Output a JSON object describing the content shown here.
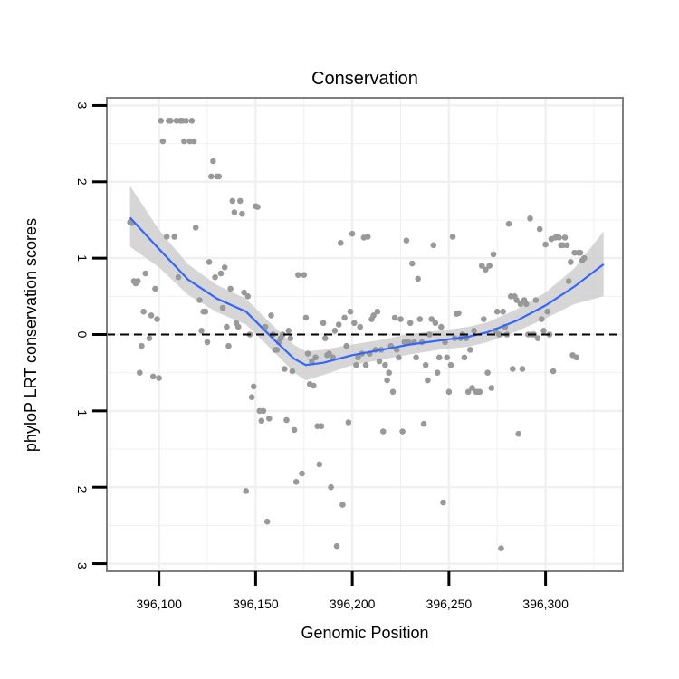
{
  "chart_data": {
    "type": "scatter",
    "title": "Conservation",
    "xlabel": "Genomic Position",
    "ylabel": "phyloP LRT conservation scores",
    "xlim": [
      396073,
      396340
    ],
    "ylim": [
      -3.1,
      3.1
    ],
    "x_ticks": [
      396100,
      396150,
      396200,
      396250,
      396300
    ],
    "x_tick_labels": [
      "396,100",
      "396,150",
      "396,200",
      "396,250",
      "396,300"
    ],
    "y_ticks": [
      -3,
      -2,
      -1,
      0,
      1,
      2,
      3
    ],
    "y_tick_labels": [
      "-3",
      "-2",
      "-1",
      "0",
      "1",
      "2",
      "3"
    ],
    "grid": true,
    "reference_line": {
      "y": 0,
      "style": "dashed"
    },
    "colors": {
      "points": "#999999",
      "smooth_line": "#3366ff",
      "confidence_band": "#cccccc",
      "reference_line": "#000000",
      "panel_border": "#7f7f7f",
      "grid": "#f0f0f0"
    },
    "points": [
      [
        396085,
        1.47
      ],
      [
        396086,
        1.46
      ],
      [
        396087,
        0.7
      ],
      [
        396088,
        0.67
      ],
      [
        396089,
        0.7
      ],
      [
        396090,
        -0.5
      ],
      [
        396091,
        -0.15
      ],
      [
        396092,
        0.3
      ],
      [
        396093,
        0.8
      ],
      [
        396095,
        -0.05
      ],
      [
        396096,
        0.25
      ],
      [
        396097,
        -0.55
      ],
      [
        396098,
        0.6
      ],
      [
        396099,
        0.2
      ],
      [
        396100,
        -0.57
      ],
      [
        396101,
        2.8
      ],
      [
        396102,
        2.53
      ],
      [
        396104,
        1.28
      ],
      [
        396105,
        2.8
      ],
      [
        396106,
        2.8
      ],
      [
        396108,
        1.28
      ],
      [
        396109,
        2.8
      ],
      [
        396110,
        0.75
      ],
      [
        396111,
        2.8
      ],
      [
        396112,
        2.8
      ],
      [
        396113,
        2.53
      ],
      [
        396114,
        2.8
      ],
      [
        396116,
        2.53
      ],
      [
        396117,
        2.8
      ],
      [
        396118,
        2.53
      ],
      [
        396119,
        1.4
      ],
      [
        396121,
        0.45
      ],
      [
        396122,
        0.05
      ],
      [
        396123,
        0.3
      ],
      [
        396124,
        0.3
      ],
      [
        396125,
        -0.1
      ],
      [
        396126,
        0.95
      ],
      [
        396127,
        2.07
      ],
      [
        396128,
        2.27
      ],
      [
        396129,
        0.75
      ],
      [
        396130,
        2.07
      ],
      [
        396131,
        2.07
      ],
      [
        396132,
        0.8
      ],
      [
        396133,
        0.35
      ],
      [
        396134,
        0.88
      ],
      [
        396135,
        0.1
      ],
      [
        396136,
        -0.15
      ],
      [
        396137,
        0.6
      ],
      [
        396138,
        1.75
      ],
      [
        396139,
        1.6
      ],
      [
        396140,
        0.15
      ],
      [
        396141,
        0.1
      ],
      [
        396142,
        1.75
      ],
      [
        396143,
        1.58
      ],
      [
        396144,
        0.55
      ],
      [
        396145,
        -2.05
      ],
      [
        396146,
        0.5
      ],
      [
        396147,
        0.0
      ],
      [
        396148,
        -0.82
      ],
      [
        396149,
        -0.68
      ],
      [
        396150,
        1.68
      ],
      [
        396151,
        1.67
      ],
      [
        396152,
        -1.0
      ],
      [
        396153,
        -1.13
      ],
      [
        396154,
        -1.0
      ],
      [
        396155,
        0.1
      ],
      [
        396156,
        -2.45
      ],
      [
        396157,
        -1.1
      ],
      [
        396158,
        0.25
      ],
      [
        396159,
        0.0
      ],
      [
        396160,
        -0.2
      ],
      [
        396161,
        -0.2
      ],
      [
        396162,
        -0.1
      ],
      [
        396163,
        -0.05
      ],
      [
        396164,
        0.0
      ],
      [
        396165,
        -0.45
      ],
      [
        396166,
        -1.12
      ],
      [
        396167,
        0.05
      ],
      [
        396168,
        -0.05
      ],
      [
        396169,
        -0.48
      ],
      [
        396170,
        -1.25
      ],
      [
        396171,
        -1.93
      ],
      [
        396172,
        0.78
      ],
      [
        396174,
        -1.82
      ],
      [
        396175,
        0.78
      ],
      [
        396176,
        0.22
      ],
      [
        396177,
        -0.25
      ],
      [
        396178,
        -0.65
      ],
      [
        396179,
        -0.35
      ],
      [
        396180,
        -0.67
      ],
      [
        396181,
        -0.3
      ],
      [
        396182,
        -1.2
      ],
      [
        396183,
        -1.7
      ],
      [
        396184,
        -1.2
      ],
      [
        396185,
        0.15
      ],
      [
        396186,
        -0.05
      ],
      [
        396187,
        -0.27
      ],
      [
        396188,
        -0.25
      ],
      [
        396189,
        -2.0
      ],
      [
        396190,
        -0.3
      ],
      [
        396191,
        0.05
      ],
      [
        396192,
        -2.77
      ],
      [
        396193,
        0.13
      ],
      [
        396194,
        1.2
      ],
      [
        396195,
        -2.23
      ],
      [
        396196,
        0.22
      ],
      [
        396197,
        -0.15
      ],
      [
        396198,
        -1.15
      ],
      [
        396199,
        0.3
      ],
      [
        396200,
        1.32
      ],
      [
        396201,
        0.15
      ],
      [
        396202,
        -0.4
      ],
      [
        396203,
        -0.3
      ],
      [
        396204,
        0.1
      ],
      [
        396205,
        -0.25
      ],
      [
        396206,
        1.27
      ],
      [
        396207,
        -0.4
      ],
      [
        396208,
        1.28
      ],
      [
        396209,
        -0.25
      ],
      [
        396210,
        0.2
      ],
      [
        396211,
        0.25
      ],
      [
        396212,
        -0.2
      ],
      [
        396213,
        0.3
      ],
      [
        396214,
        -0.35
      ],
      [
        396215,
        -0.2
      ],
      [
        396216,
        -1.27
      ],
      [
        396217,
        -0.4
      ],
      [
        396218,
        -0.6
      ],
      [
        396219,
        -0.5
      ],
      [
        396220,
        -0.15
      ],
      [
        396221,
        -0.75
      ],
      [
        396222,
        0.22
      ],
      [
        396223,
        -0.2
      ],
      [
        396224,
        -0.3
      ],
      [
        396225,
        0.2
      ],
      [
        396226,
        -1.27
      ],
      [
        396227,
        -0.1
      ],
      [
        396228,
        1.23
      ],
      [
        396229,
        -0.1
      ],
      [
        396230,
        0.15
      ],
      [
        396231,
        0.93
      ],
      [
        396232,
        -0.1
      ],
      [
        396233,
        -0.3
      ],
      [
        396234,
        0.73
      ],
      [
        396235,
        0.2
      ],
      [
        396236,
        -0.1
      ],
      [
        396237,
        -1.17
      ],
      [
        396238,
        -0.4
      ],
      [
        396239,
        -0.6
      ],
      [
        396240,
        0.0
      ],
      [
        396241,
        0.2
      ],
      [
        396242,
        1.17
      ],
      [
        396243,
        0.15
      ],
      [
        396244,
        -0.5
      ],
      [
        396245,
        -0.3
      ],
      [
        396246,
        0.1
      ],
      [
        396247,
        -2.2
      ],
      [
        396248,
        -0.1
      ],
      [
        396249,
        -0.3
      ],
      [
        396250,
        -0.75
      ],
      [
        396251,
        -0.4
      ],
      [
        396252,
        1.28
      ],
      [
        396253,
        -0.05
      ],
      [
        396254,
        0.27
      ],
      [
        396255,
        0.28
      ],
      [
        396256,
        -0.05
      ],
      [
        396257,
        0.0
      ],
      [
        396258,
        -0.3
      ],
      [
        396259,
        -0.05
      ],
      [
        396260,
        -0.75
      ],
      [
        396261,
        -0.2
      ],
      [
        396262,
        -0.7
      ],
      [
        396263,
        0.05
      ],
      [
        396264,
        -0.75
      ],
      [
        396265,
        -0.75
      ],
      [
        396266,
        -0.75
      ],
      [
        396267,
        0.9
      ],
      [
        396268,
        0.2
      ],
      [
        396269,
        0.85
      ],
      [
        396270,
        -0.5
      ],
      [
        396271,
        0.9
      ],
      [
        396272,
        -0.7
      ],
      [
        396273,
        1.05
      ],
      [
        396274,
        0.05
      ],
      [
        396275,
        0.3
      ],
      [
        396276,
        0.0
      ],
      [
        396277,
        -2.8
      ],
      [
        396278,
        0.3
      ],
      [
        396279,
        0.1
      ],
      [
        396280,
        0.0
      ],
      [
        396281,
        1.45
      ],
      [
        396282,
        0.5
      ],
      [
        396283,
        -0.45
      ],
      [
        396284,
        0.5
      ],
      [
        396285,
        0.45
      ],
      [
        396286,
        -1.3
      ],
      [
        396287,
        0.4
      ],
      [
        396288,
        -0.45
      ],
      [
        396289,
        0.45
      ],
      [
        396290,
        0.4
      ],
      [
        396291,
        0.0
      ],
      [
        396292,
        1.52
      ],
      [
        396293,
        0.0
      ],
      [
        396294,
        0.0
      ],
      [
        396295,
        0.45
      ],
      [
        396296,
        -0.05
      ],
      [
        396297,
        1.38
      ],
      [
        396298,
        0.2
      ],
      [
        396299,
        0.05
      ],
      [
        396300,
        1.18
      ],
      [
        396301,
        0.3
      ],
      [
        396302,
        0.0
      ],
      [
        396303,
        1.25
      ],
      [
        396304,
        -0.48
      ],
      [
        396305,
        1.27
      ],
      [
        396306,
        1.28
      ],
      [
        396307,
        1.27
      ],
      [
        396308,
        1.17
      ],
      [
        396309,
        1.17
      ],
      [
        396310,
        1.27
      ],
      [
        396311,
        1.17
      ],
      [
        396312,
        0.7
      ],
      [
        396313,
        0.95
      ],
      [
        396314,
        -0.27
      ],
      [
        396315,
        1.07
      ],
      [
        396316,
        -0.3
      ],
      [
        396317,
        1.07
      ],
      [
        396318,
        1.07
      ],
      [
        396319,
        0.97
      ],
      [
        396320,
        1.0
      ]
    ],
    "smooth": [
      {
        "x": 396085,
        "y": 1.53,
        "lo": 1.15,
        "hi": 1.95
      },
      {
        "x": 396100,
        "y": 1.12,
        "lo": 0.88,
        "hi": 1.37
      },
      {
        "x": 396115,
        "y": 0.72,
        "lo": 0.52,
        "hi": 0.92
      },
      {
        "x": 396130,
        "y": 0.47,
        "lo": 0.29,
        "hi": 0.65
      },
      {
        "x": 396145,
        "y": 0.3,
        "lo": 0.13,
        "hi": 0.47
      },
      {
        "x": 396160,
        "y": -0.08,
        "lo": -0.24,
        "hi": 0.09
      },
      {
        "x": 396170,
        "y": -0.32,
        "lo": -0.5,
        "hi": -0.14
      },
      {
        "x": 396176,
        "y": -0.4,
        "lo": -0.6,
        "hi": -0.22
      },
      {
        "x": 396185,
        "y": -0.37,
        "lo": -0.53,
        "hi": -0.2
      },
      {
        "x": 396200,
        "y": -0.27,
        "lo": -0.4,
        "hi": -0.13
      },
      {
        "x": 396215,
        "y": -0.2,
        "lo": -0.33,
        "hi": -0.07
      },
      {
        "x": 396230,
        "y": -0.13,
        "lo": -0.26,
        "hi": 0.01
      },
      {
        "x": 396245,
        "y": -0.08,
        "lo": -0.2,
        "hi": 0.05
      },
      {
        "x": 396260,
        "y": -0.03,
        "lo": -0.16,
        "hi": 0.1
      },
      {
        "x": 396270,
        "y": 0.03,
        "lo": -0.1,
        "hi": 0.16
      },
      {
        "x": 396285,
        "y": 0.18,
        "lo": 0.04,
        "hi": 0.33
      },
      {
        "x": 396300,
        "y": 0.38,
        "lo": 0.21,
        "hi": 0.55
      },
      {
        "x": 396315,
        "y": 0.63,
        "lo": 0.4,
        "hi": 0.87
      },
      {
        "x": 396330,
        "y": 0.92,
        "lo": 0.5,
        "hi": 1.35
      }
    ]
  }
}
